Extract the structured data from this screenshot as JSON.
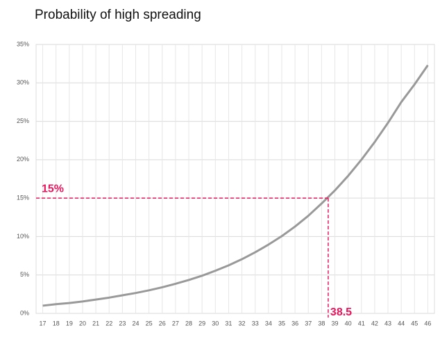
{
  "chart_data": {
    "type": "line",
    "title": "Probability of high spreading",
    "x": [
      17,
      18,
      19,
      20,
      21,
      22,
      23,
      24,
      25,
      26,
      27,
      28,
      29,
      30,
      31,
      32,
      33,
      34,
      35,
      36,
      37,
      38,
      39,
      40,
      41,
      42,
      43,
      44,
      45,
      46
    ],
    "series": [
      {
        "color": "#999999",
        "values": [
          1.0,
          1.2,
          1.35,
          1.55,
          1.8,
          2.05,
          2.35,
          2.65,
          3.0,
          3.4,
          3.85,
          4.35,
          4.9,
          5.55,
          6.25,
          7.05,
          7.95,
          8.95,
          10.05,
          11.3,
          12.7,
          14.3,
          16.0,
          17.9,
          20.0,
          22.3,
          24.8,
          27.5,
          29.8,
          32.3
        ]
      }
    ],
    "xlim": [
      16.5,
      46.5
    ],
    "xticks": [
      17,
      18,
      19,
      20,
      21,
      22,
      23,
      24,
      25,
      26,
      27,
      28,
      29,
      30,
      31,
      32,
      33,
      34,
      35,
      36,
      37,
      38,
      39,
      40,
      41,
      42,
      43,
      44,
      45,
      46
    ],
    "ylim": [
      0,
      35
    ],
    "yticks": [
      {
        "value": 0,
        "label": "0%"
      },
      {
        "value": 5,
        "label": "5%"
      },
      {
        "value": 10,
        "label": "10%"
      },
      {
        "value": 15,
        "label": "15%"
      },
      {
        "value": 20,
        "label": "20%"
      },
      {
        "value": 25,
        "label": "25%"
      },
      {
        "value": 30,
        "label": "30%"
      },
      {
        "value": 35,
        "label": "35%"
      }
    ],
    "grid": true,
    "annotation_color": "#e8175d",
    "hline": {
      "value": 15,
      "label": "15%"
    },
    "vline": 38.5
  }
}
